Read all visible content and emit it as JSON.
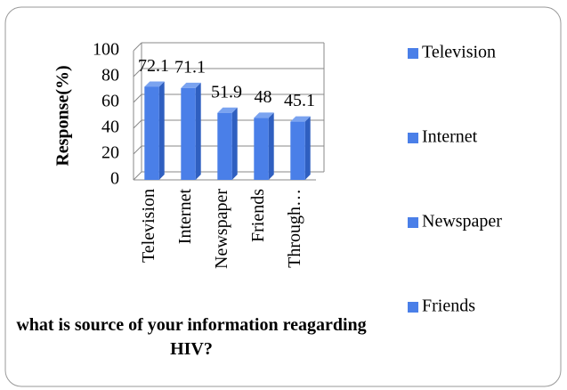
{
  "chart_data": {
    "type": "bar3d",
    "title": "what is source of your information reagarding HIV?",
    "y_label": "Response(%)",
    "categories": [
      "Television",
      "Internet",
      "Newspaper",
      "Friends",
      "Through…"
    ],
    "values": [
      72.1,
      71.1,
      51.9,
      48,
      45.1
    ],
    "color": "#4a7fe8",
    "ylim": [
      0,
      100
    ],
    "yticks": [
      0,
      20,
      40,
      60,
      80,
      100
    ],
    "grid": true,
    "legend": [
      "Television",
      "Internet",
      "Newspaper",
      "Friends"
    ],
    "legend_position": "right"
  }
}
